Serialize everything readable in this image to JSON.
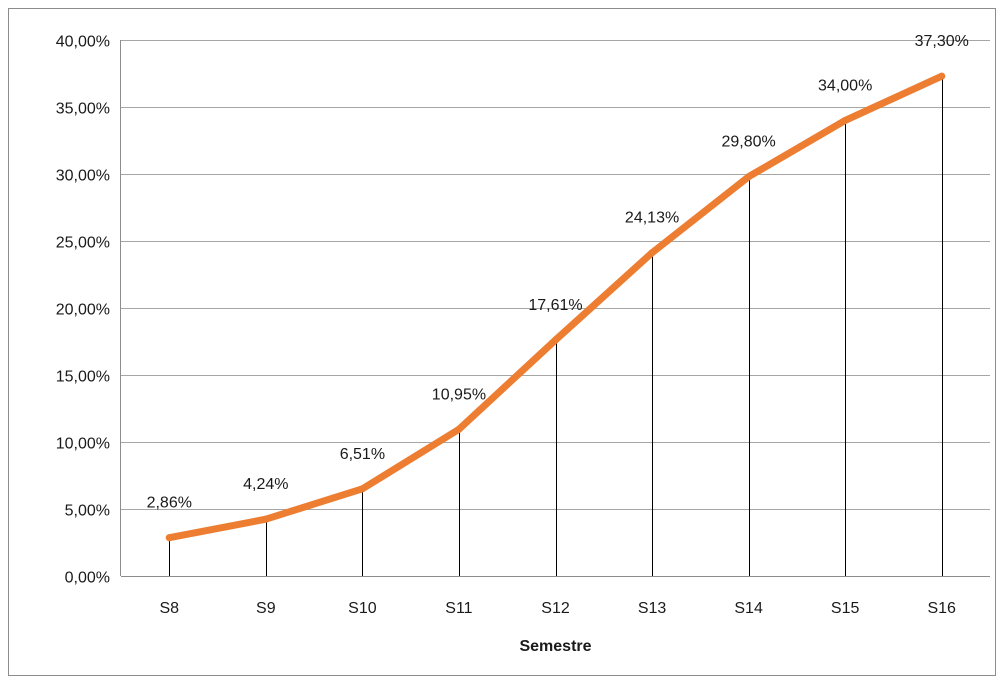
{
  "chart_data": {
    "type": "line",
    "title": "",
    "xlabel": "Semestre",
    "ylabel": "",
    "categories": [
      "S8",
      "S9",
      "S10",
      "S11",
      "S12",
      "S13",
      "S14",
      "S15",
      "S16"
    ],
    "series": [
      {
        "values": [
          2.86,
          4.24,
          6.51,
          10.95,
          17.61,
          24.13,
          29.8,
          34.0,
          37.3
        ],
        "data_labels": [
          "2,86%",
          "4,24%",
          "6,51%",
          "10,95%",
          "17,61%",
          "24,13%",
          "29,80%",
          "34,00%",
          "37,30%"
        ],
        "color": "#ED7D31"
      }
    ],
    "ylim": [
      0,
      40
    ],
    "y_ticks": [
      0,
      5,
      10,
      15,
      20,
      25,
      30,
      35,
      40
    ],
    "y_tick_labels": [
      "0,00%",
      "5,00%",
      "10,00%",
      "15,00%",
      "20,00%",
      "25,00%",
      "30,00%",
      "35,00%",
      "40,00%"
    ],
    "grid": true,
    "drop_lines": true,
    "legend": "none",
    "colors": {
      "line": "#ED7D31",
      "grid": "#a6a6a6",
      "axis": "#8c8c8c",
      "drop_line": "#000000",
      "text": "#1a1a1a"
    }
  }
}
